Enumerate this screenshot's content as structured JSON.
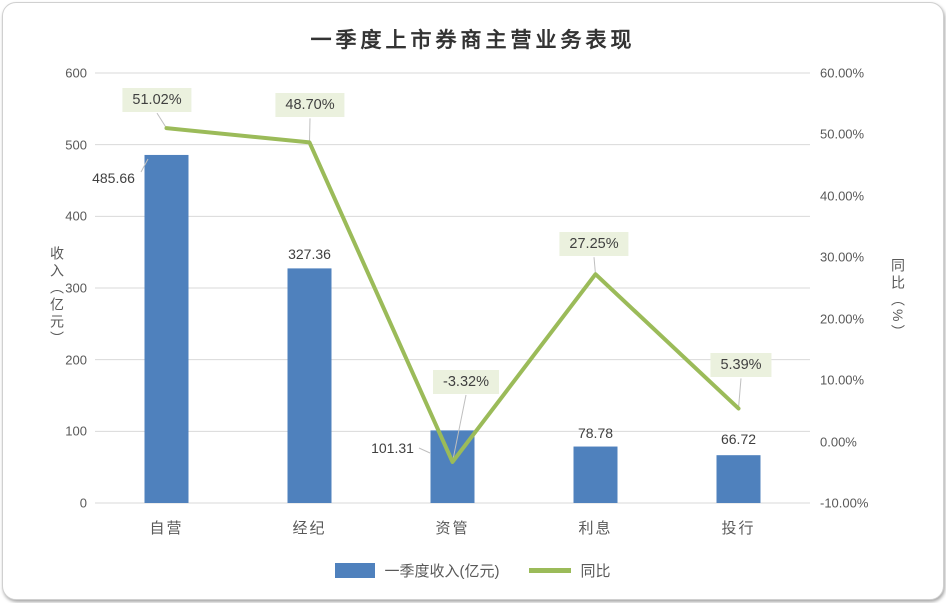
{
  "chart_data": {
    "type": "bar",
    "subtype": "combo_bar_line",
    "title": "一季度上市券商主营业务表现",
    "categories": [
      "自营",
      "经纪",
      "资管",
      "利息",
      "投行"
    ],
    "series": [
      {
        "name": "一季度收入(亿元)",
        "type": "bar",
        "axis": "left",
        "color": "#4F81BD",
        "values": [
          485.66,
          327.36,
          101.31,
          78.78,
          66.72
        ],
        "labels": [
          "485.66",
          "327.36",
          "101.31",
          "78.78",
          "66.72"
        ]
      },
      {
        "name": "同比",
        "type": "line",
        "axis": "right",
        "color": "#9BBB59",
        "values": [
          51.02,
          48.7,
          -3.32,
          27.25,
          5.39
        ],
        "labels": [
          "51.02%",
          "48.70%",
          "-3.32%",
          "27.25%",
          "5.39%"
        ],
        "label_background": "#EBF1DE"
      }
    ],
    "left_axis": {
      "title": "收入（亿元）",
      "min": 0,
      "max": 600,
      "step": 100,
      "ticks": [
        "0",
        "100",
        "200",
        "300",
        "400",
        "500",
        "600"
      ]
    },
    "right_axis": {
      "title": "同比（%）",
      "min": -10,
      "max": 60,
      "step": 10,
      "ticks": [
        "-10.00%",
        "0.00%",
        "10.00%",
        "20.00%",
        "30.00%",
        "40.00%",
        "50.00%",
        "60.00%"
      ]
    },
    "grid": true,
    "legend_position": "bottom",
    "colors": {
      "grid": "#D9D9D9",
      "leader": "#BFBFBF",
      "tick_text": "#595959",
      "label_text": "#404040",
      "title_text": "#333333"
    }
  }
}
